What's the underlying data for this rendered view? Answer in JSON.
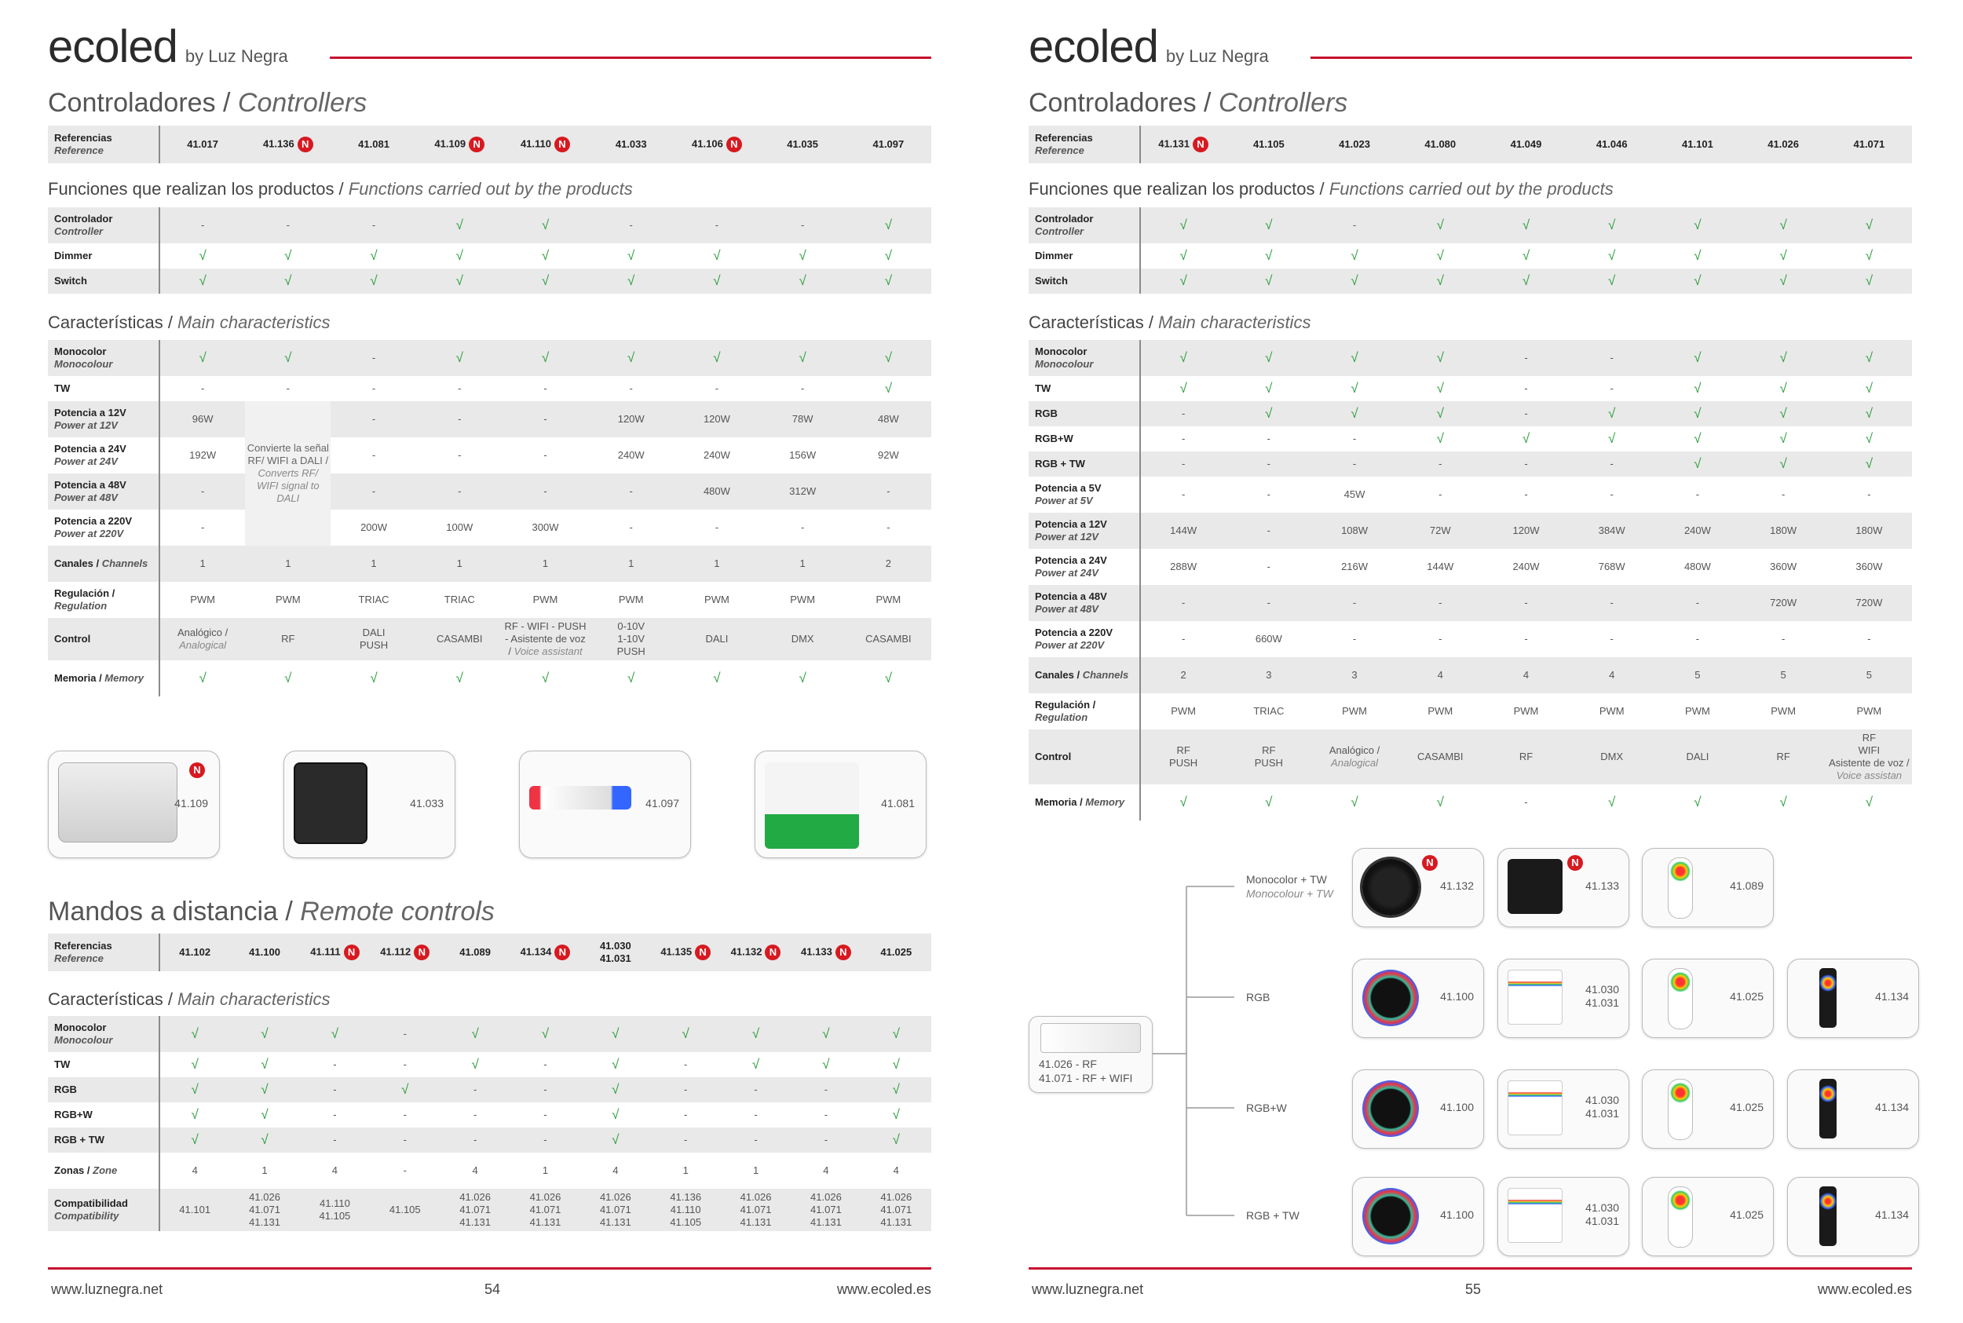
{
  "new_badge": "N",
  "pages": [
    {
      "brand": "ecoled",
      "brand_by": "by Luz Negra",
      "blocks": [
        {
          "kind": "heading",
          "title": "Controladores / ",
          "title_en": "Controllers"
        },
        {
          "kind": "refs",
          "label": "Referencias",
          "label_en": "Reference",
          "items": [
            {
              "ref": "41.017"
            },
            {
              "ref": "41.136",
              "new": true
            },
            {
              "ref": "41.081"
            },
            {
              "ref": "41.109",
              "new": true
            },
            {
              "ref": "41.110",
              "new": true
            },
            {
              "ref": "41.033"
            },
            {
              "ref": "41.106",
              "new": true
            },
            {
              "ref": "41.035"
            },
            {
              "ref": "41.097"
            }
          ]
        },
        {
          "kind": "heading",
          "title": "Funciones que realizan los productos / ",
          "title_en": "Functions carried out by the products"
        },
        {
          "kind": "table",
          "rows": [
            {
              "label": "Controlador",
              "label_en": "Controller",
              "cells": [
                "-",
                "-",
                "-",
                "√",
                "√",
                "-",
                "-",
                "-",
                "√"
              ]
            },
            {
              "label": "Dimmer",
              "cells": [
                "√",
                "√",
                "√",
                "√",
                "√",
                "√",
                "√",
                "√",
                "√"
              ]
            },
            {
              "label": "Switch",
              "cells": [
                "√",
                "√",
                "√",
                "√",
                "√",
                "√",
                "√",
                "√",
                "√"
              ]
            }
          ]
        },
        {
          "kind": "heading",
          "title": "Características / ",
          "title_en": "Main characteristics"
        },
        {
          "kind": "table",
          "rows": [
            {
              "label": "Monocolor",
              "label_en": "Monocolour",
              "cells": [
                "√",
                "√",
                "-",
                "√",
                "√",
                "√",
                "√",
                "√",
                "√"
              ]
            },
            {
              "label": "TW",
              "cells": [
                "-",
                "-",
                "-",
                "-",
                "-",
                "-",
                "-",
                "-",
                "√"
              ]
            },
            {
              "label": "Potencia a 12V",
              "label_en": "Power at 12V",
              "cells": [
                "96W",
                {
                  "es": "Convierte la señal RF/ WIFI a DALI / ",
                  "en": "Converts RF/ WIFI signal to DALI"
                },
                "-",
                "-",
                "-",
                "120W",
                "120W",
                "78W",
                "48W"
              ]
            },
            {
              "label": "Potencia a 24V",
              "label_en": "Power at 24V",
              "cells": [
                "192W",
                null,
                "-",
                "-",
                "-",
                "240W",
                "240W",
                "156W",
                "92W"
              ]
            },
            {
              "label": "Potencia a 48V",
              "label_en": "Power at 48V",
              "cells": [
                "-",
                null,
                "-",
                "-",
                "-",
                "-",
                "480W",
                "312W",
                "-"
              ]
            },
            {
              "label": "Potencia a 220V",
              "label_en": "Power at 220V",
              "cells": [
                "-",
                null,
                "200W",
                "100W",
                "300W",
                "-",
                "-",
                "-",
                "-"
              ]
            },
            {
              "label": "Canales / ",
              "label_en": "Channels",
              "cells": [
                "1",
                "1",
                "1",
                "1",
                "1",
                "1",
                "1",
                "1",
                "2"
              ]
            },
            {
              "label": "Regulación / ",
              "label_en": "Regulation",
              "cells": [
                "PWM",
                "PWM",
                "TRIAC",
                "TRIAC",
                "PWM",
                "PWM",
                "PWM",
                "PWM",
                "PWM"
              ]
            },
            {
              "label": "Control",
              "cells": [
                {
                  "es": "Analógico / ",
                  "en": "Analogical"
                },
                "RF",
                "DALI\nPUSH",
                "CASAMBI",
                {
                  "es": "RF - WIFI - PUSH - Asistente de voz / ",
                  "en": "Voice assistant"
                },
                "0-10V\n1-10V\nPUSH",
                "DALI",
                "DMX",
                "CASAMBI"
              ]
            },
            {
              "label": "Memoria / ",
              "label_en": "Memory",
              "cells": [
                "√",
                "√",
                "√",
                "√",
                "√",
                "√",
                "√",
                "√",
                "√"
              ]
            }
          ]
        },
        {
          "kind": "products",
          "items": [
            {
              "ref": "41.109",
              "new": true
            },
            {
              "ref": "41.033"
            },
            {
              "ref": "41.097"
            },
            {
              "ref": "41.081"
            }
          ]
        },
        {
          "kind": "heading",
          "title": "Mandos a distancia / ",
          "title_en": "Remote controls"
        },
        {
          "kind": "refs",
          "label": "Referencias",
          "label_en": "Reference",
          "items": [
            {
              "ref": "41.102"
            },
            {
              "ref": "41.100"
            },
            {
              "ref": "41.111",
              "new": true
            },
            {
              "ref": "41.112",
              "new": true
            },
            {
              "ref": "41.089"
            },
            {
              "ref": "41.134",
              "new": true
            },
            {
              "ref": "41.030\n41.031"
            },
            {
              "ref": "41.135",
              "new": true
            },
            {
              "ref": "41.132",
              "new": true
            },
            {
              "ref": "41.133",
              "new": true
            },
            {
              "ref": "41.025"
            }
          ]
        },
        {
          "kind": "heading",
          "title": "Características / ",
          "title_en": "Main characteristics"
        },
        {
          "kind": "table",
          "rows": [
            {
              "label": "Monocolor",
              "label_en": "Monocolour",
              "cells": [
                "√",
                "√",
                "√",
                "-",
                "√",
                "√",
                "√",
                "√",
                "√",
                "√",
                "√"
              ]
            },
            {
              "label": "TW",
              "cells": [
                "√",
                "√",
                "-",
                "-",
                "√",
                "-",
                "√",
                "-",
                "√",
                "√",
                "√"
              ]
            },
            {
              "label": "RGB",
              "cells": [
                "√",
                "√",
                "-",
                "√",
                "-",
                "-",
                "√",
                "-",
                "-",
                "-",
                "√"
              ]
            },
            {
              "label": "RGB+W",
              "cells": [
                "√",
                "√",
                "-",
                "-",
                "-",
                "-",
                "√",
                "-",
                "-",
                "-",
                "√"
              ]
            },
            {
              "label": "RGB + TW",
              "cells": [
                "√",
                "√",
                "-",
                "-",
                "-",
                "-",
                "√",
                "-",
                "-",
                "-",
                "√"
              ]
            },
            {
              "label": "Zonas / ",
              "label_en": "Zone",
              "cells": [
                "4",
                "1",
                "4",
                "-",
                "4",
                "1",
                "4",
                "1",
                "1",
                "4",
                "4"
              ]
            },
            {
              "label": "Compatibilidad",
              "label_en": "Compatibility",
              "cells": [
                "41.101",
                "41.026\n41.071\n41.131",
                "41.110\n41.105",
                "41.105",
                "41.026\n41.071\n41.131",
                "41.026\n41.071\n41.131",
                "41.026\n41.071\n41.131",
                "41.136\n41.110\n41.105",
                "41.026\n41.071\n41.131",
                "41.026\n41.071\n41.131",
                "41.026\n41.071\n41.131"
              ]
            }
          ]
        }
      ],
      "footer": {
        "left": "www.luznegra.net",
        "page": "54",
        "right": "www.ecoled.es"
      }
    },
    {
      "brand": "ecoled",
      "brand_by": "by Luz Negra",
      "blocks": [
        {
          "kind": "heading",
          "title": "Controladores / ",
          "title_en": "Controllers"
        },
        {
          "kind": "refs",
          "label": "Referencias",
          "label_en": "Reference",
          "items": [
            {
              "ref": "41.131",
              "new": true
            },
            {
              "ref": "41.105"
            },
            {
              "ref": "41.023"
            },
            {
              "ref": "41.080"
            },
            {
              "ref": "41.049"
            },
            {
              "ref": "41.046"
            },
            {
              "ref": "41.101"
            },
            {
              "ref": "41.026"
            },
            {
              "ref": "41.071"
            }
          ]
        },
        {
          "kind": "heading",
          "title": "Funciones que realizan los productos / ",
          "title_en": "Functions carried out by the products"
        },
        {
          "kind": "table",
          "rows": [
            {
              "label": "Controlador",
              "label_en": "Controller",
              "cells": [
                "√",
                "√",
                "-",
                "√",
                "√",
                "√",
                "√",
                "√",
                "√"
              ]
            },
            {
              "label": "Dimmer",
              "cells": [
                "√",
                "√",
                "√",
                "√",
                "√",
                "√",
                "√",
                "√",
                "√"
              ]
            },
            {
              "label": "Switch",
              "cells": [
                "√",
                "√",
                "√",
                "√",
                "√",
                "√",
                "√",
                "√",
                "√"
              ]
            }
          ]
        },
        {
          "kind": "heading",
          "title": "Características / ",
          "title_en": "Main characteristics"
        },
        {
          "kind": "table",
          "rows": [
            {
              "label": "Monocolor",
              "label_en": "Monocolour",
              "cells": [
                "√",
                "√",
                "√",
                "√",
                "-",
                "-",
                "√",
                "√",
                "√"
              ]
            },
            {
              "label": "TW",
              "cells": [
                "√",
                "√",
                "√",
                "√",
                "-",
                "-",
                "√",
                "√",
                "√"
              ]
            },
            {
              "label": "RGB",
              "cells": [
                "-",
                "√",
                "√",
                "√",
                "-",
                "√",
                "√",
                "√",
                "√"
              ]
            },
            {
              "label": "RGB+W",
              "cells": [
                "-",
                "-",
                "-",
                "√",
                "√",
                "√",
                "√",
                "√",
                "√"
              ]
            },
            {
              "label": "RGB + TW",
              "cells": [
                "-",
                "-",
                "-",
                "-",
                "-",
                "-",
                "√",
                "√",
                "√"
              ]
            },
            {
              "label": "Potencia a 5V",
              "label_en": "Power at 5V",
              "cells": [
                "-",
                "-",
                "45W",
                "-",
                "-",
                "-",
                "-",
                "-",
                "-"
              ]
            },
            {
              "label": "Potencia a 12V",
              "label_en": "Power at 12V",
              "cells": [
                "144W",
                "-",
                "108W",
                "72W",
                "120W",
                "384W",
                "240W",
                "180W",
                "180W"
              ]
            },
            {
              "label": "Potencia a 24V",
              "label_en": "Power at 24V",
              "cells": [
                "288W",
                "-",
                "216W",
                "144W",
                "240W",
                "768W",
                "480W",
                "360W",
                "360W"
              ]
            },
            {
              "label": "Potencia a 48V",
              "label_en": "Power at 48V",
              "cells": [
                "-",
                "-",
                "-",
                "-",
                "-",
                "-",
                "-",
                "720W",
                "720W"
              ]
            },
            {
              "label": "Potencia a 220V",
              "label_en": "Power at 220V",
              "cells": [
                "-",
                "660W",
                "-",
                "-",
                "-",
                "-",
                "-",
                "-",
                "-"
              ]
            },
            {
              "label": "Canales / ",
              "label_en": "Channels",
              "cells": [
                "2",
                "3",
                "3",
                "4",
                "4",
                "4",
                "5",
                "5",
                "5"
              ]
            },
            {
              "label": "Regulación / ",
              "label_en": "Regulation",
              "cells": [
                "PWM",
                "TRIAC",
                "PWM",
                "PWM",
                "PWM",
                "PWM",
                "PWM",
                "PWM",
                "PWM"
              ]
            },
            {
              "label": "Control",
              "cells": [
                "RF\nPUSH",
                "RF\nPUSH",
                {
                  "es": "Analógico / ",
                  "en": "Analogical"
                },
                "CASAMBI",
                "RF",
                "DMX",
                "DALI",
                "RF",
                {
                  "es": "RF\nWIFI\nAsistente de voz / ",
                  "en": "Voice assistan"
                }
              ]
            },
            {
              "label": "Memoria / ",
              "label_en": "Memory",
              "cells": [
                "√",
                "√",
                "√",
                "√",
                "-",
                "√",
                "√",
                "√",
                "√"
              ]
            }
          ]
        },
        {
          "kind": "diagram",
          "controller": [
            "41.026 - RF",
            "41.071 - RF + WIFI"
          ],
          "branches": [
            {
              "label": "Monocolor + TW",
              "label_en": "Monocolour + TW",
              "items": [
                {
                  "ref": "41.132",
                  "new": true
                },
                {
                  "ref": "41.133",
                  "new": true
                },
                {
                  "ref": "41.089"
                }
              ]
            },
            {
              "label": "RGB",
              "items": [
                {
                  "ref": "41.100"
                },
                {
                  "ref": "41.030\n41.031"
                },
                {
                  "ref": "41.025"
                },
                {
                  "ref": "41.134"
                }
              ]
            },
            {
              "label": "RGB+W",
              "items": [
                {
                  "ref": "41.100"
                },
                {
                  "ref": "41.030\n41.031"
                },
                {
                  "ref": "41.025"
                },
                {
                  "ref": "41.134"
                }
              ]
            },
            {
              "label": "RGB + TW",
              "items": [
                {
                  "ref": "41.100"
                },
                {
                  "ref": "41.030\n41.031"
                },
                {
                  "ref": "41.025"
                },
                {
                  "ref": "41.134"
                }
              ]
            }
          ]
        }
      ],
      "footer": {
        "left": "www.luznegra.net",
        "page": "55",
        "right": "www.ecoled.es"
      }
    }
  ]
}
